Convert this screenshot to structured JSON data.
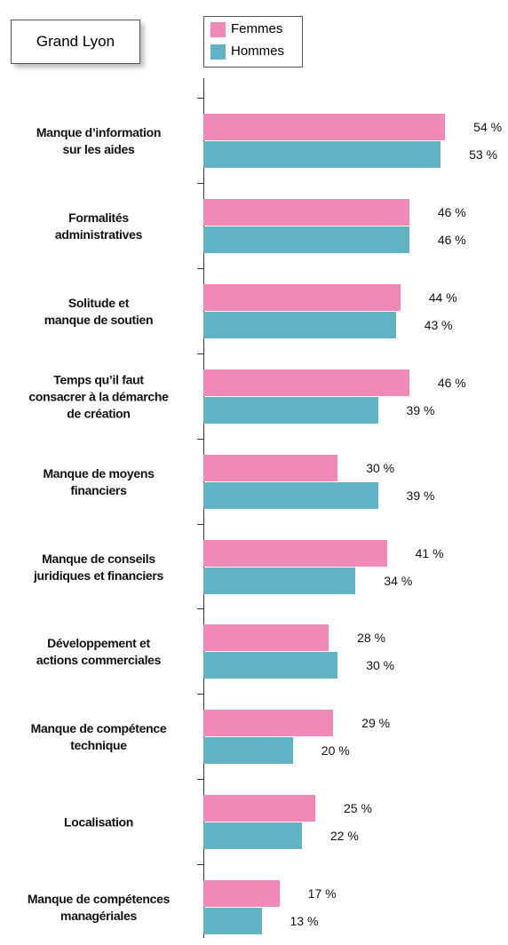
{
  "chart_data": {
    "type": "bar",
    "orientation": "horizontal",
    "title": "Grand Lyon",
    "categories": [
      "Manque d’information\nsur les aides",
      "Formalités\nadministratives",
      "Solitude et\nmanque de soutien",
      "Temps qu’il faut\nconsacrer à la démarche\nde création",
      "Manque de moyens\nfinanciers",
      "Manque de conseils\njuridiques et financiers",
      "Développement et\nactions commerciales",
      "Manque de compétence\ntechnique",
      "Localisation",
      "Manque de compétences\nmanagériales"
    ],
    "series": [
      {
        "name": "Femmes",
        "color": "#f088b8",
        "values": [
          54,
          46,
          44,
          46,
          30,
          41,
          28,
          29,
          25,
          17
        ],
        "value_labels": [
          "54 %",
          "46 %",
          "44 %",
          "46 %",
          "30 %",
          "41 %",
          "28 %",
          "29 %",
          "25 %",
          "17 %"
        ]
      },
      {
        "name": "Hommes",
        "color": "#62b2c6",
        "values": [
          53,
          46,
          43,
          39,
          39,
          34,
          30,
          20,
          22,
          13
        ],
        "value_labels": [
          "53 %",
          "46 %",
          "43 %",
          "39 %",
          "39 %",
          "34 %",
          "30 %",
          "20 %",
          "22 %",
          "13 %"
        ]
      }
    ]
  }
}
